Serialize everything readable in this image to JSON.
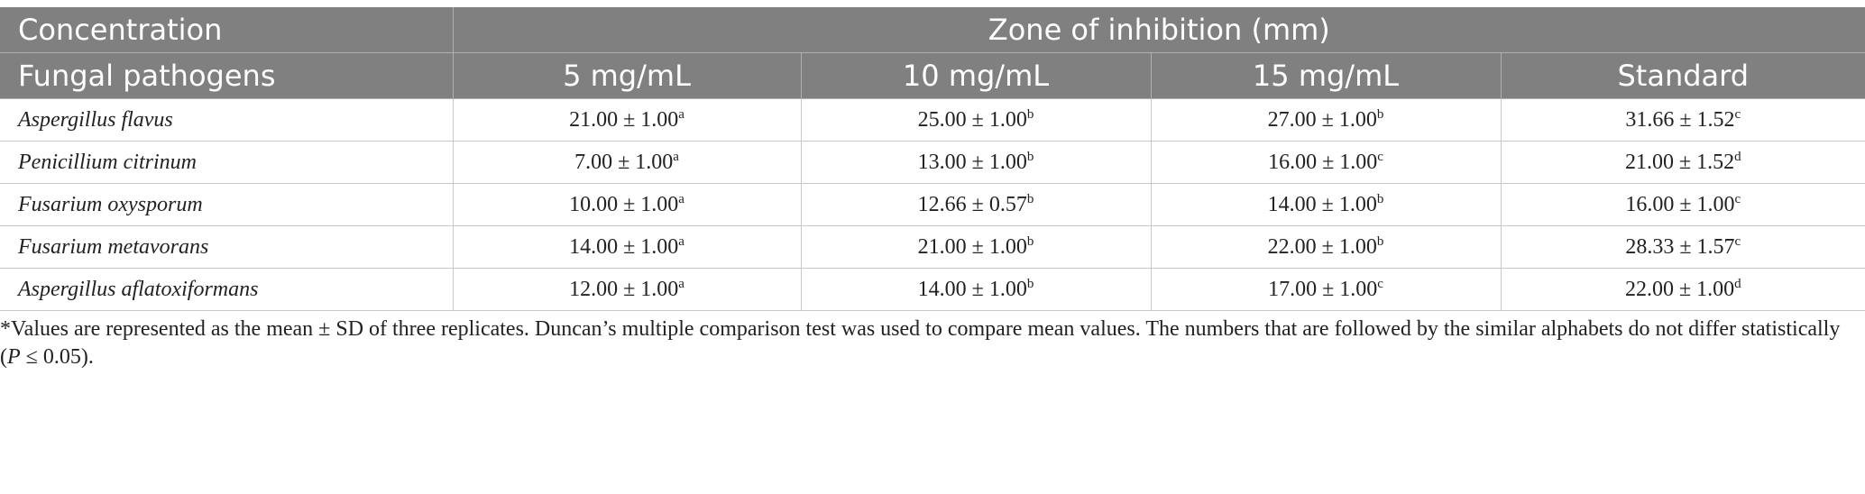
{
  "table": {
    "header": {
      "row1": [
        "Concentration",
        "Zone of inhibition (mm)"
      ],
      "row2": [
        "Fungal pathogens",
        "5 mg/mL",
        "10 mg/mL",
        "15 mg/mL",
        "Standard"
      ]
    },
    "rows": [
      [
        "Aspergillus flavus",
        {
          "value": "21.00 ± 1.00",
          "sup": "a"
        },
        {
          "value": "25.00 ± 1.00",
          "sup": "b"
        },
        {
          "value": "27.00 ± 1.00",
          "sup": "b"
        },
        {
          "value": "31.66 ± 1.52",
          "sup": "c"
        }
      ],
      [
        "Penicillium citrinum",
        {
          "value": "7.00 ± 1.00",
          "sup": "a"
        },
        {
          "value": "13.00 ± 1.00",
          "sup": "b"
        },
        {
          "value": "16.00 ± 1.00",
          "sup": "c"
        },
        {
          "value": "21.00 ± 1.52",
          "sup": "d"
        }
      ],
      [
        "Fusarium oxysporum",
        {
          "value": "10.00 ± 1.00",
          "sup": "a"
        },
        {
          "value": "12.66 ± 0.57",
          "sup": "b"
        },
        {
          "value": "14.00 ± 1.00",
          "sup": "b"
        },
        {
          "value": "16.00 ± 1.00",
          "sup": "c"
        }
      ],
      [
        "Fusarium metavorans",
        {
          "value": "14.00 ± 1.00",
          "sup": "a"
        },
        {
          "value": "21.00 ± 1.00",
          "sup": "b"
        },
        {
          "value": "22.00 ± 1.00",
          "sup": "b"
        },
        {
          "value": "28.33 ± 1.57",
          "sup": "c"
        }
      ],
      [
        "Aspergillus aflatoxiformans",
        {
          "value": "12.00 ± 1.00",
          "sup": "a"
        },
        {
          "value": "14.00 ± 1.00",
          "sup": "b"
        },
        {
          "value": "17.00 ± 1.00",
          "sup": "c"
        },
        {
          "value": "22.00 ± 1.00",
          "sup": "d"
        }
      ]
    ]
  },
  "footnote": {
    "before": "*Values are represented as the mean ± SD of three replicates. Duncan’s multiple comparison test was used to compare mean values. The numbers that are followed by the similar alphabets do not differ statistically (",
    "italic": "P",
    "after": " ≤ 0.05)."
  }
}
